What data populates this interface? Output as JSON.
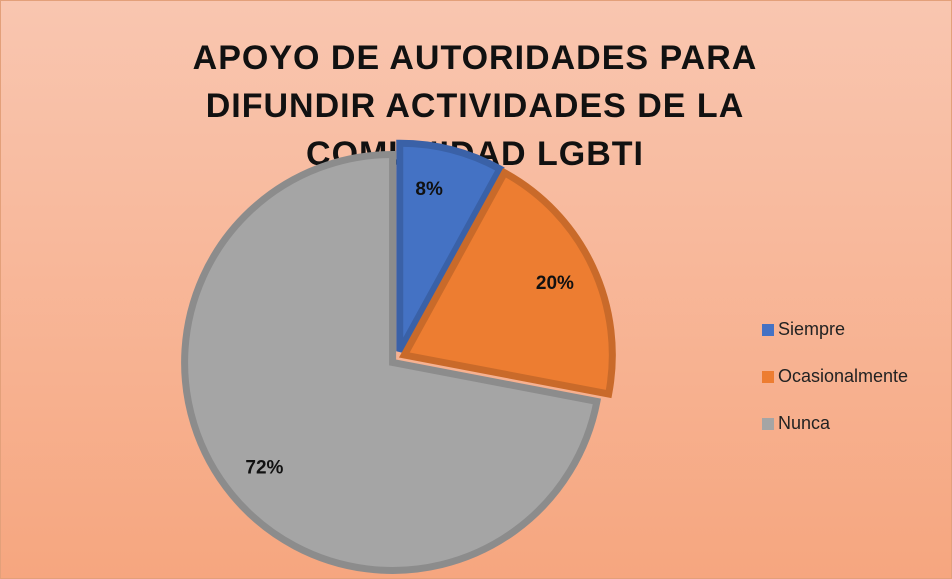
{
  "chart_data": {
    "type": "pie",
    "title": "APOYO DE AUTORIDADES PARA DIFUNDIR ACTIVIDADES DE LA COMUNIDAD LGBTI",
    "categories": [
      "Siempre",
      "Ocasionalmente",
      "Nunca"
    ],
    "values": [
      8,
      20,
      72
    ],
    "value_labels": [
      "8%",
      "20%",
      "72%"
    ],
    "colors": [
      "#4472c4",
      "#ed7d31",
      "#a5a5a5"
    ],
    "legend": "right"
  }
}
